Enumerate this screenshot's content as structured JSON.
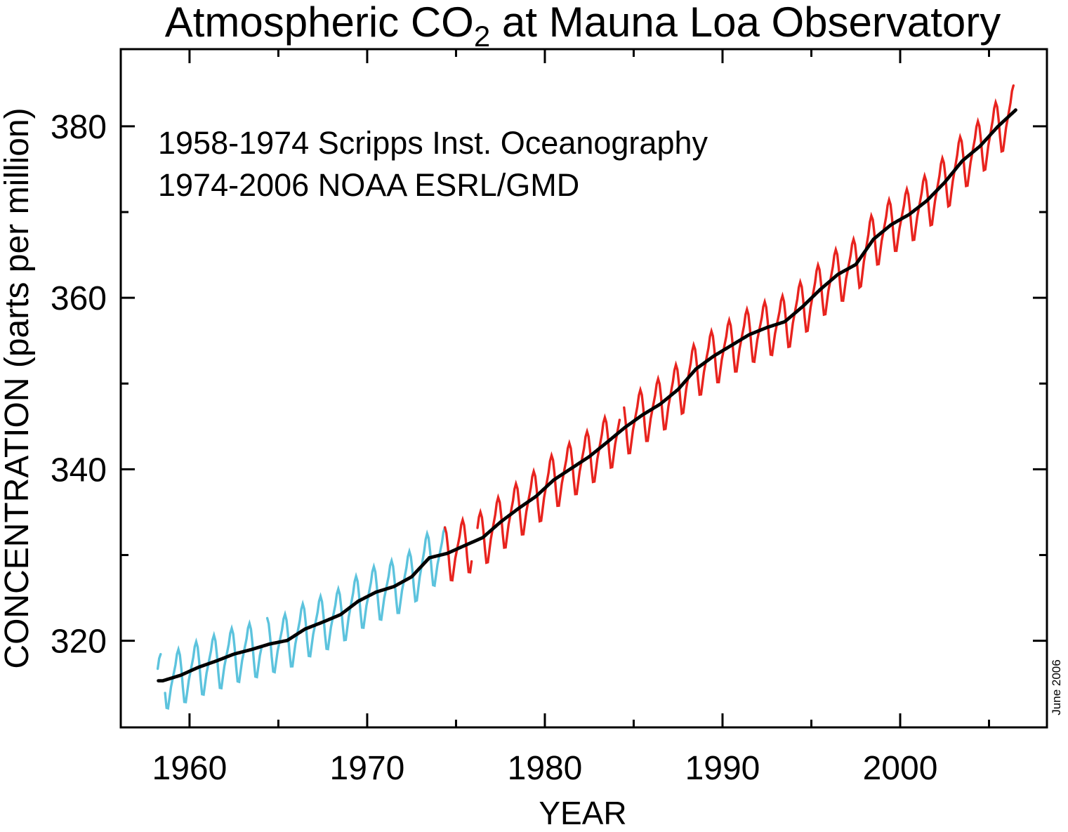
{
  "page": {
    "background": "#FFFFFF"
  },
  "chart_data": {
    "type": "line",
    "title": {
      "prefix": "Atmospheric CO",
      "subscript": "2",
      "suffix": " at Mauna Loa Observatory"
    },
    "xlabel": "YEAR",
    "ylabel": "CONCENTRATION (parts per million)",
    "annotation_lines": [
      "1958-1974 Scripps Inst. Oceanography",
      "1974-2006 NOAA ESRL/GMD"
    ],
    "side_note": "June 2006",
    "xlim": [
      1956.13,
      2008.26
    ],
    "ylim": [
      309.9,
      389.0
    ],
    "x_major_ticks": [
      1960,
      1970,
      1980,
      1990,
      2000
    ],
    "x_minor_ticks": [
      1965,
      1975,
      1985,
      1995,
      2005
    ],
    "y_major_ticks": [
      320,
      340,
      360,
      380
    ],
    "y_minor_ticks": [
      330,
      350,
      370
    ],
    "grid": false,
    "axis_color": "#000000",
    "series": [
      {
        "name": "scripps-monthly-1958-1974",
        "color": "#5CC3DD",
        "start": 1958.17,
        "end": 1974.42,
        "kind": "monthly"
      },
      {
        "name": "noaa-monthly-1974-2006",
        "color": "#E8231E",
        "start": 1974.3,
        "end": 2006.45,
        "kind": "monthly"
      },
      {
        "name": "smoothed-trend",
        "color": "#000000",
        "start": 1958.25,
        "end": 2006.54,
        "kind": "trend"
      }
    ],
    "years": [
      1958,
      1959,
      1960,
      1961,
      1962,
      1963,
      1964,
      1965,
      1966,
      1967,
      1968,
      1969,
      1970,
      1971,
      1972,
      1973,
      1974,
      1975,
      1976,
      1977,
      1978,
      1979,
      1980,
      1981,
      1982,
      1983,
      1984,
      1985,
      1986,
      1987,
      1988,
      1989,
      1990,
      1991,
      1992,
      1993,
      1994,
      1995,
      1996,
      1997,
      1998,
      1999,
      2000,
      2001,
      2002,
      2003,
      2004,
      2005,
      2006
    ],
    "annual_mean_ppm": [
      315.34,
      315.98,
      316.91,
      317.64,
      318.45,
      318.99,
      319.62,
      320.04,
      321.37,
      322.18,
      323.05,
      324.62,
      325.68,
      326.32,
      327.46,
      329.68,
      330.19,
      331.12,
      332.03,
      333.84,
      335.41,
      336.84,
      338.76,
      340.12,
      341.48,
      343.15,
      344.87,
      346.35,
      347.61,
      349.31,
      351.69,
      353.2,
      354.45,
      355.7,
      356.54,
      357.21,
      358.96,
      360.97,
      362.74,
      363.88,
      366.84,
      368.54,
      369.71,
      371.32,
      373.45,
      375.98,
      377.7,
      379.98,
      381.9
    ],
    "seasonal_offsets_ppm": [
      -0.2,
      0.6,
      1.4,
      2.6,
      3.1,
      2.4,
      0.7,
      -1.5,
      -3.3,
      -3.4,
      -2.2,
      -1.0
    ],
    "data_gaps": [
      [
        1958.45,
        1958.6
      ],
      [
        1964.08,
        1964.33
      ],
      [
        1975.93,
        1976.16
      ],
      [
        1984.23,
        1984.44
      ]
    ]
  }
}
